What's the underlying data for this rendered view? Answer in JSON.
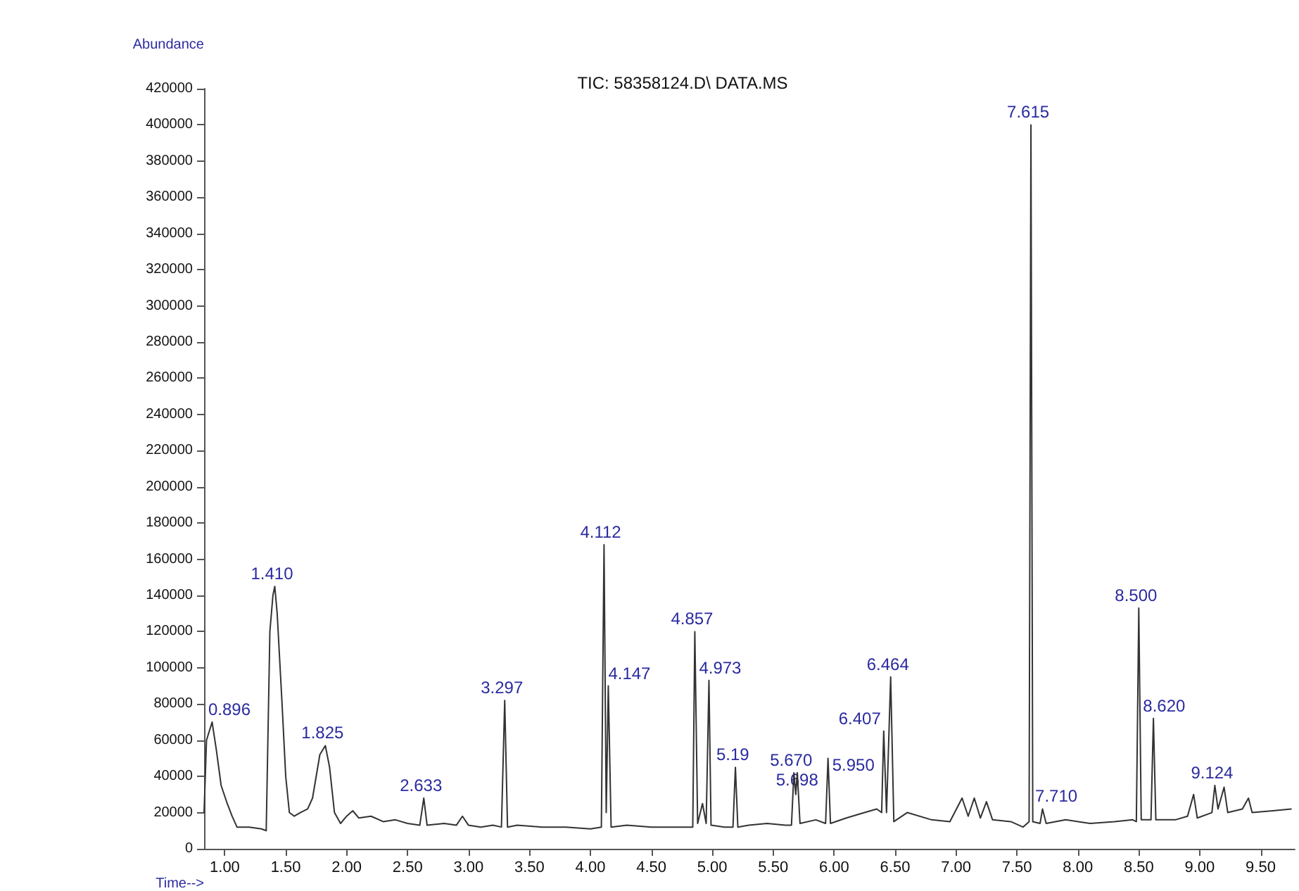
{
  "chart_data": {
    "type": "line",
    "title": "TIC: 58358124.D\\ DATA.MS",
    "xlabel": "Time-->",
    "ylabel": "Abundance",
    "xlim": [
      0.83,
      9.78
    ],
    "xticks": [
      {
        "value": 1,
        "label": "1.00"
      },
      {
        "value": 1.5,
        "label": "1.50"
      },
      {
        "value": 2,
        "label": "2.00"
      },
      {
        "value": 2.5,
        "label": "2.50"
      },
      {
        "value": 3,
        "label": "3.00"
      },
      {
        "value": 3.5,
        "label": "3.50"
      },
      {
        "value": 4,
        "label": "4.00"
      },
      {
        "value": 4.5,
        "label": "4.50"
      },
      {
        "value": 5,
        "label": "5.00"
      },
      {
        "value": 5.5,
        "label": "5.50"
      },
      {
        "value": 6,
        "label": "6.00"
      },
      {
        "value": 6.5,
        "label": "6.50"
      },
      {
        "value": 7,
        "label": "7.00"
      },
      {
        "value": 7.5,
        "label": "7.50"
      },
      {
        "value": 8,
        "label": "8.00"
      },
      {
        "value": 8.5,
        "label": "8.50"
      },
      {
        "value": 9,
        "label": "9.00"
      },
      {
        "value": 9.5,
        "label": "9.50"
      }
    ],
    "ylim": [
      0,
      420000
    ],
    "yticks": [
      0,
      20000,
      40000,
      60000,
      80000,
      100000,
      120000,
      140000,
      160000,
      180000,
      200000,
      220000,
      240000,
      260000,
      280000,
      300000,
      320000,
      340000,
      360000,
      380000,
      400000,
      420000
    ],
    "grid": false,
    "marker": "none",
    "line_style": "solid",
    "series": [
      {
        "color": "#333333",
        "x": [
          0.83,
          0.85,
          0.896,
          0.93,
          0.97,
          1.02,
          1.06,
          1.1,
          1.2,
          1.3,
          1.34,
          1.37,
          1.395,
          1.41,
          1.43,
          1.47,
          1.5,
          1.53,
          1.57,
          1.62,
          1.68,
          1.72,
          1.78,
          1.825,
          1.86,
          1.9,
          1.95,
          2.0,
          2.05,
          2.1,
          2.2,
          2.3,
          2.4,
          2.5,
          2.6,
          2.633,
          2.66,
          2.8,
          2.9,
          2.95,
          3.0,
          3.1,
          3.2,
          3.27,
          3.297,
          3.32,
          3.4,
          3.6,
          3.8,
          4.0,
          4.09,
          4.112,
          4.13,
          4.147,
          4.17,
          4.3,
          4.5,
          4.7,
          4.84,
          4.857,
          4.88,
          4.92,
          4.95,
          4.973,
          4.99,
          5.1,
          5.17,
          5.19,
          5.21,
          5.3,
          5.45,
          5.6,
          5.65,
          5.67,
          5.685,
          5.698,
          5.72,
          5.85,
          5.93,
          5.95,
          5.97,
          6.1,
          6.25,
          6.35,
          6.39,
          6.407,
          6.43,
          6.464,
          6.49,
          6.6,
          6.8,
          6.95,
          7.05,
          7.1,
          7.15,
          7.2,
          7.25,
          7.3,
          7.45,
          7.55,
          7.6,
          7.615,
          7.63,
          7.69,
          7.71,
          7.74,
          7.9,
          8.1,
          8.3,
          8.45,
          8.48,
          8.5,
          8.52,
          8.6,
          8.62,
          8.64,
          8.8,
          8.9,
          8.95,
          8.98,
          9.1,
          9.124,
          9.15,
          9.2,
          9.23,
          9.35,
          9.4,
          9.43,
          9.6,
          9.75
        ],
        "values": [
          20000,
          60000,
          70000,
          55000,
          35000,
          25000,
          18000,
          12000,
          12000,
          11000,
          10000,
          120000,
          140000,
          145000,
          130000,
          80000,
          40000,
          20000,
          18000,
          20000,
          22000,
          28000,
          52000,
          57000,
          45000,
          20000,
          14000,
          18000,
          21000,
          17000,
          18000,
          15000,
          16000,
          14000,
          13000,
          28000,
          13000,
          14000,
          13000,
          18000,
          13000,
          12000,
          13000,
          12000,
          82000,
          12000,
          13000,
          12000,
          12000,
          11000,
          12000,
          168000,
          20000,
          90000,
          12000,
          13000,
          12000,
          12000,
          12000,
          120000,
          14000,
          25000,
          14000,
          93000,
          13000,
          12000,
          12000,
          45000,
          12000,
          13000,
          14000,
          13000,
          13000,
          42000,
          30000,
          42000,
          14000,
          16000,
          14000,
          50000,
          14000,
          17000,
          20000,
          22000,
          20000,
          65000,
          20000,
          95000,
          15000,
          20000,
          16000,
          15000,
          28000,
          18000,
          28000,
          17000,
          26000,
          16000,
          15000,
          12000,
          15000,
          400000,
          15000,
          14000,
          22000,
          14000,
          16000,
          14000,
          15000,
          16000,
          15000,
          133000,
          16000,
          16000,
          72000,
          16000,
          16000,
          18000,
          30000,
          17000,
          20000,
          35000,
          22000,
          34000,
          20000,
          22000,
          28000,
          20000,
          21000,
          22000
        ]
      }
    ],
    "annotations": [
      {
        "text": "0.896",
        "x": 0.896,
        "y": 70000
      },
      {
        "text": "1.410",
        "x": 1.41,
        "y": 145000
      },
      {
        "text": "1.825",
        "x": 1.825,
        "y": 57000
      },
      {
        "text": "2.633",
        "x": 2.633,
        "y": 28000
      },
      {
        "text": "3.297",
        "x": 3.297,
        "y": 82000
      },
      {
        "text": "4.112",
        "x": 4.112,
        "y": 168000
      },
      {
        "text": "4.147",
        "x": 4.147,
        "y": 90000
      },
      {
        "text": "4.857",
        "x": 4.857,
        "y": 120000
      },
      {
        "text": "4.973",
        "x": 4.973,
        "y": 93000
      },
      {
        "text": "5.19",
        "x": 5.19,
        "y": 45000
      },
      {
        "text": "5.670",
        "x": 5.67,
        "y": 42000
      },
      {
        "text": "5.698",
        "x": 5.698,
        "y": 42000
      },
      {
        "text": "5.950",
        "x": 5.95,
        "y": 50000
      },
      {
        "text": "6.407",
        "x": 6.407,
        "y": 65000
      },
      {
        "text": "6.464",
        "x": 6.464,
        "y": 95000
      },
      {
        "text": "7.615",
        "x": 7.615,
        "y": 400000
      },
      {
        "text": "7.710",
        "x": 7.71,
        "y": 22000
      },
      {
        "text": "8.500",
        "x": 8.5,
        "y": 133000
      },
      {
        "text": "8.620",
        "x": 8.62,
        "y": 72000
      },
      {
        "text": "9.124",
        "x": 9.124,
        "y": 35000
      }
    ]
  }
}
